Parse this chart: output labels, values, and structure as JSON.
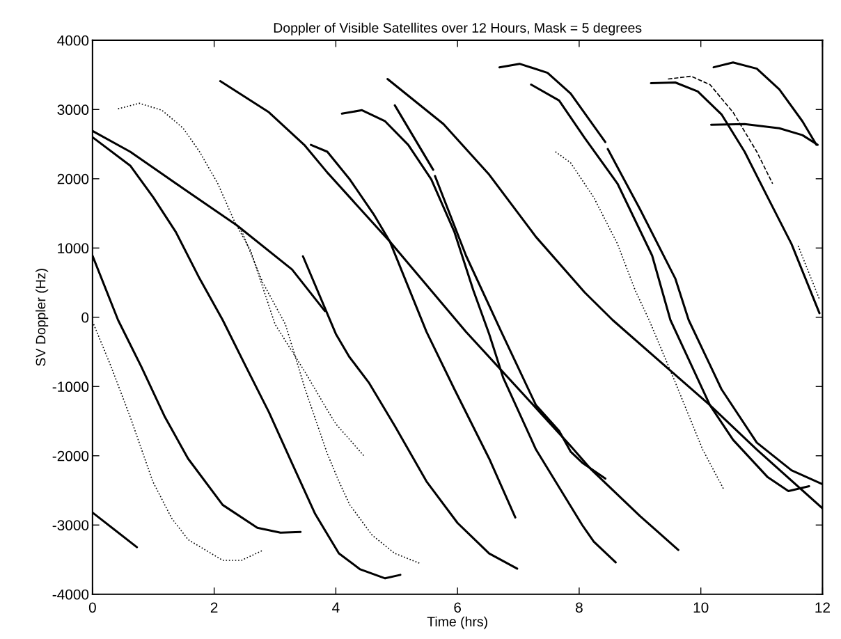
{
  "chart_data": {
    "type": "line",
    "title": "Doppler of Visible Satellites over 12 Hours, Mask = 5 degrees",
    "xlabel": "Time (hrs)",
    "ylabel": "SV Doppler (Hz)",
    "xlim": [
      0,
      12
    ],
    "ylim": [
      -4000,
      4000
    ],
    "xticks": [
      0,
      2,
      4,
      6,
      8,
      10,
      12
    ],
    "yticks": [
      -4000,
      -3000,
      -2000,
      -1000,
      0,
      1000,
      2000,
      3000,
      4000
    ],
    "grid": false,
    "marker": "none",
    "series": [
      {
        "color": "#000000",
        "x": [
          0,
          0.62,
          1.0,
          1.37,
          1.76,
          2.14,
          2.52,
          2.9,
          3.28,
          3.66,
          4.05,
          4.4,
          4.81,
          5.06
        ],
        "values": [
          2600,
          2190,
          1730,
          1230,
          560,
          -40,
          -710,
          -1370,
          -2110,
          -2840,
          -3410,
          -3640,
          -3770,
          -3720
        ]
      },
      {
        "color": "#000000",
        "x": [
          0,
          0.62,
          1.49,
          2.37,
          3.28,
          3.82
        ],
        "values": [
          2690,
          2390,
          1860,
          1330,
          690,
          90
        ]
      },
      {
        "color": "#000000",
        "line_style": "dotted",
        "x": [
          0.42,
          0.77,
          1.14,
          1.49,
          1.76,
          2.06,
          2.33,
          2.6,
          3.0,
          3.5,
          3.86,
          4.0,
          4.47
        ],
        "values": [
          3010,
          3090,
          2990,
          2730,
          2390,
          1930,
          1390,
          960,
          -100,
          -800,
          -1340,
          -1540,
          -2010
        ]
      },
      {
        "color": "#000000",
        "line_style": "dotted",
        "x": [
          2.45,
          2.8,
          3.17,
          3.5,
          3.86,
          4.05,
          4.23,
          4.6,
          4.97,
          5.4
        ],
        "values": [
          1250,
          500,
          -100,
          -1050,
          -1970,
          -2370,
          -2710,
          -3150,
          -3410,
          -3560
        ]
      },
      {
        "color": "#000000",
        "x": [
          3.46,
          4.0,
          4.22,
          4.54,
          4.97,
          5.49,
          6.0,
          6.52,
          6.98
        ],
        "values": [
          880,
          -240,
          -570,
          -940,
          -1570,
          -2370,
          -2970,
          -3410,
          -3630
        ]
      },
      {
        "color": "#000000",
        "line_style": "dotted",
        "x": [
          0,
          0.3,
          0.62,
          0.99,
          1.3,
          1.57,
          2.14,
          2.45,
          2.79
        ],
        "values": [
          -60,
          -700,
          -1440,
          -2370,
          -2900,
          -3210,
          -3510,
          -3510,
          -3370
        ]
      },
      {
        "color": "#000000",
        "x": [
          0,
          0.42,
          0.8,
          1.19,
          1.57,
          2.14,
          2.71,
          3.09,
          3.42
        ],
        "values": [
          890,
          -40,
          -710,
          -1440,
          -2040,
          -2710,
          -3040,
          -3110,
          -3100
        ]
      },
      {
        "color": "#000000",
        "x": [
          0,
          0.73
        ],
        "values": [
          -2820,
          -3320
        ]
      },
      {
        "color": "#000000",
        "x": [
          2.1,
          2.9,
          3.48,
          3.86,
          4.89,
          6.14,
          7.29,
          7.86,
          8.2,
          9.0,
          9.63
        ],
        "values": [
          3410,
          2960,
          2490,
          2090,
          1090,
          -210,
          -1310,
          -1860,
          -2200,
          -2870,
          -3360
        ]
      },
      {
        "color": "#000000",
        "x": [
          3.59,
          3.86,
          4.23,
          4.62,
          4.89,
          5.49,
          5.95,
          6.52,
          6.95
        ],
        "values": [
          2490,
          2390,
          1990,
          1490,
          1090,
          -210,
          -1040,
          -2040,
          -2890
        ]
      },
      {
        "color": "#000000",
        "x": [
          4.1,
          4.43,
          4.81,
          5.19,
          5.57,
          5.95,
          6.26,
          6.52,
          6.75,
          7.29,
          8.05,
          8.24,
          8.6
        ],
        "values": [
          2940,
          2990,
          2830,
          2490,
          1990,
          1230,
          390,
          -240,
          -870,
          -1910,
          -3000,
          -3240,
          -3540
        ]
      },
      {
        "color": "#000000",
        "x": [
          4.97,
          5.6,
          5.615,
          5.63,
          6.14,
          6.72,
          7.29,
          7.67,
          7.86,
          8.05,
          8.43
        ],
        "values": [
          3060,
          2130,
          null,
          2040,
          890,
          -210,
          -1270,
          -1640,
          -1940,
          -2100,
          -2330
        ]
      },
      {
        "color": "#000000",
        "x": [
          4.85,
          5.77,
          6.52,
          7.29,
          8.09,
          8.55,
          9.46,
          10.15,
          10.92,
          12
        ],
        "values": [
          3440,
          2790,
          2060,
          1160,
          360,
          -40,
          -740,
          -1270,
          -1910,
          -2760
        ]
      },
      {
        "color": "#000000",
        "x": [
          6.69,
          7.02,
          7.48,
          7.86,
          8.43,
          8.45,
          8.47,
          9.0,
          9.58,
          9.8,
          10.34,
          10.92,
          11.49,
          12
        ],
        "values": [
          3610,
          3660,
          3530,
          3230,
          2530,
          null,
          2430,
          1560,
          560,
          -40,
          -1040,
          -1810,
          -2210,
          -2410
        ]
      },
      {
        "color": "#000000",
        "x": [
          7.21,
          7.67,
          8.09,
          8.63,
          9.2,
          9.5,
          10.15,
          10.53,
          11.1,
          11.44,
          11.78
        ],
        "values": [
          3360,
          3130,
          2590,
          1930,
          890,
          -40,
          -1270,
          -1770,
          -2310,
          -2510,
          -2440
        ]
      },
      {
        "color": "#000000",
        "line_style": "dotted",
        "x": [
          7.61,
          7.86,
          8.24,
          8.63,
          8.92,
          9.15,
          9.58,
          10.03,
          10.38
        ],
        "values": [
          2390,
          2230,
          1730,
          1060,
          390,
          -40,
          -940,
          -1910,
          -2490
        ]
      },
      {
        "color": "#000000",
        "x": [
          9.18,
          9.58,
          9.95,
          10.34,
          10.72,
          11.1,
          11.49,
          11.95
        ],
        "values": [
          3380,
          3390,
          3260,
          2930,
          2390,
          1730,
          1060,
          60
        ]
      },
      {
        "color": "#000000",
        "line_style": "dashed",
        "x": [
          9.46,
          9.84,
          10.15,
          10.53,
          10.92,
          11.18
        ],
        "values": [
          3440,
          3480,
          3360,
          2960,
          2390,
          1930
        ]
      },
      {
        "color": "#000000",
        "x": [
          10.21,
          10.53,
          10.92,
          11.29,
          11.67,
          11.9
        ],
        "values": [
          3610,
          3680,
          3590,
          3290,
          2830,
          2490
        ]
      },
      {
        "color": "#000000",
        "x": [
          10.17,
          10.72,
          11.29,
          11.67,
          11.92
        ],
        "values": [
          2780,
          2790,
          2730,
          2630,
          2490
        ]
      },
      {
        "color": "#000000",
        "line_style": "dotted",
        "x": [
          11.6,
          11.95
        ],
        "values": [
          1030,
          260
        ]
      }
    ]
  }
}
